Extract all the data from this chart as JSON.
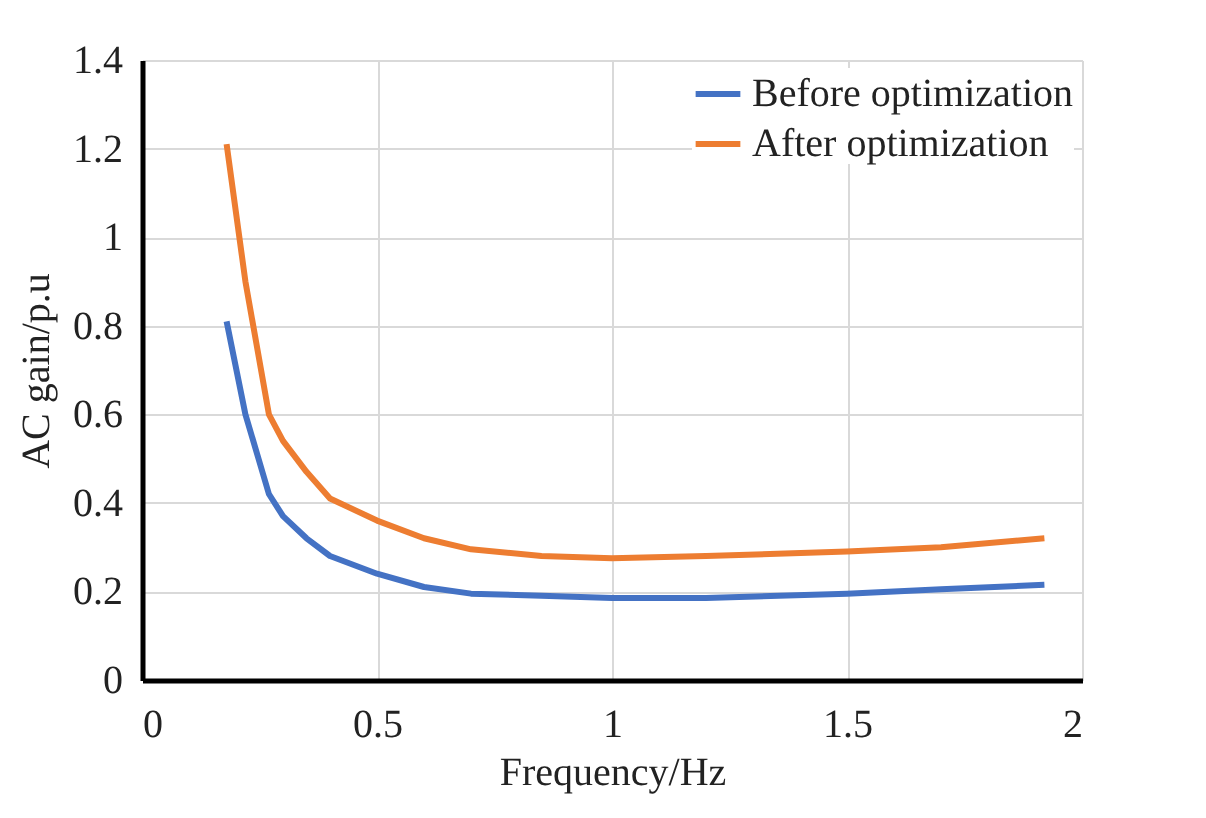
{
  "chart_data": {
    "type": "line",
    "xlabel": "Frequency/Hz",
    "ylabel": "AC gain/p.u",
    "xlim": [
      0,
      2
    ],
    "xticks": [
      0,
      0.5,
      1,
      1.5,
      2
    ],
    "ylim": [
      0,
      1.4
    ],
    "yticks": [
      0,
      0.2,
      0.4,
      0.6,
      0.8,
      1,
      1.2,
      1.4
    ],
    "x": [
      0.18,
      0.22,
      0.27,
      0.3,
      0.35,
      0.4,
      0.5,
      0.6,
      0.7,
      0.85,
      1,
      1.2,
      1.5,
      1.7,
      1.92
    ],
    "series": [
      {
        "name": "Before optimization",
        "color": "#4472c4",
        "values": [
          0.81,
          0.6,
          0.42,
          0.37,
          0.32,
          0.28,
          0.24,
          0.21,
          0.195,
          0.19,
          0.185,
          0.185,
          0.195,
          0.205,
          0.215
        ]
      },
      {
        "name": "After optimization",
        "color": "#ed7d31",
        "values": [
          1.21,
          0.9,
          0.6,
          0.54,
          0.47,
          0.41,
          0.36,
          0.32,
          0.295,
          0.28,
          0.275,
          0.28,
          0.29,
          0.3,
          0.32
        ]
      }
    ],
    "grid": true,
    "legend": "top right",
    "marker": "none",
    "line_style": "solid"
  }
}
